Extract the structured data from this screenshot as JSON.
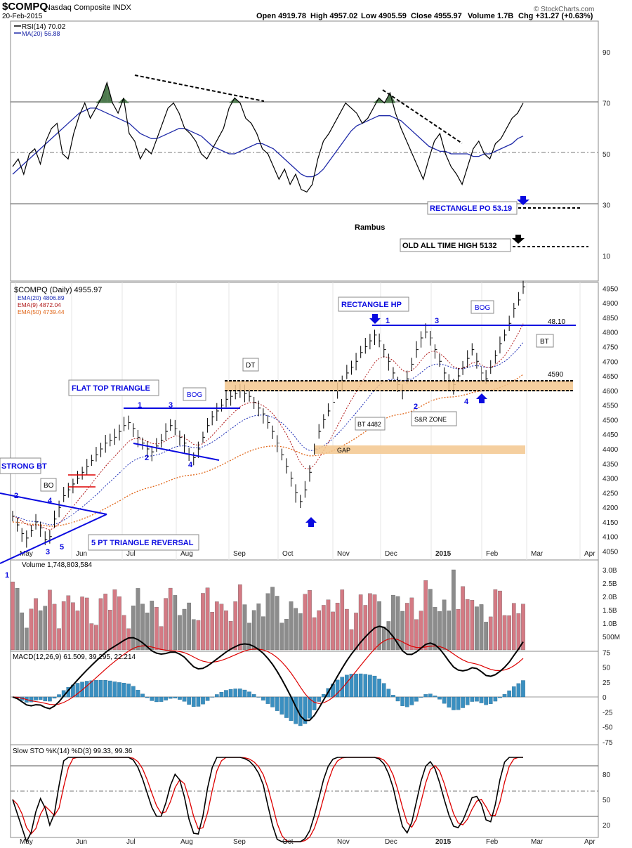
{
  "header": {
    "symbol": "$COMPQ",
    "name": "Nasdaq Composite INDX",
    "date": "20-Feb-2015",
    "open": "Open 4919.78",
    "high": "High 4957.02",
    "low": "Low 4905.59",
    "close": "Close 4955.97",
    "volume": "Volume 1.7B",
    "change": "Chg +31.27 (+0.63%)",
    "watermark": "© StockCharts.com"
  },
  "colors": {
    "rsi": "#000000",
    "rsi_ma": "#1f2aa8",
    "ema20": "#1b2bb5",
    "ema9": "#b01818",
    "ema50": "#e0671a",
    "vol_up": "#d47a84",
    "vol_dn": "#8c8c8c",
    "macd_hist": "#3a8fc0",
    "annot_blue": "#0a0ae0",
    "zone": "#f3c78e",
    "overbought_fill": "#4e7a4e"
  },
  "chart_data": [
    {
      "type": "line",
      "title": "RSI(14) 70.02",
      "series": [
        {
          "name": "RSI(14) 70.02",
          "values": [
            45,
            48,
            42,
            50,
            52,
            46,
            55,
            60,
            62,
            50,
            48,
            58,
            65,
            70,
            64,
            68,
            72,
            78,
            70,
            66,
            72,
            58,
            55,
            48,
            52,
            50,
            56,
            62,
            68,
            70,
            66,
            60,
            58,
            55,
            50,
            48,
            52,
            56,
            60,
            68,
            72,
            70,
            64,
            62,
            58,
            52,
            50,
            45,
            40,
            44,
            38,
            42,
            36,
            35,
            38,
            48,
            55,
            58,
            62,
            66,
            70,
            68,
            66,
            62,
            64,
            68,
            72,
            70,
            74,
            66,
            60,
            55,
            50,
            45,
            40,
            48,
            55,
            58,
            50,
            45,
            42,
            38,
            45,
            52,
            55,
            50,
            48,
            54,
            56,
            60,
            64,
            66,
            70
          ]
        },
        {
          "name": "MA(20) 56.88",
          "values": [
            42,
            44,
            46,
            48,
            50,
            52,
            54,
            56,
            58,
            60,
            62,
            64,
            66,
            67,
            68,
            68,
            67,
            66,
            65,
            64,
            63,
            62,
            60,
            58,
            57,
            56,
            56,
            57,
            58,
            59,
            60,
            60,
            59,
            58,
            57,
            55,
            53,
            52,
            51,
            50,
            50,
            51,
            52,
            53,
            54,
            54,
            53,
            52,
            50,
            48,
            46,
            44,
            42,
            41,
            41,
            42,
            44,
            47,
            50,
            53,
            56,
            59,
            61,
            62,
            63,
            64,
            65,
            65,
            65,
            64,
            63,
            61,
            59,
            57,
            55,
            53,
            52,
            51,
            51,
            50,
            50,
            50,
            50,
            49,
            49,
            50,
            50,
            51,
            52,
            53,
            54,
            56,
            57
          ]
        }
      ],
      "ylim": [
        0,
        100
      ],
      "yticks": [
        "90",
        "70",
        "50",
        "30",
        "10"
      ]
    },
    {
      "type": "line",
      "title": "$COMPQ (Daily) 4955.97",
      "series": [
        {
          "name": "EMA(20) 4806.89"
        },
        {
          "name": "EMA(9) 4872.04"
        },
        {
          "name": "EMA(50) 4739.44"
        }
      ],
      "ylim": [
        4020,
        4970
      ],
      "yticks": [
        "4950",
        "4900",
        "4850",
        "4800",
        "4750",
        "4700",
        "4650",
        "4600",
        "4550",
        "4500",
        "4450",
        "4400",
        "4350",
        "4300",
        "4250",
        "4200",
        "4150",
        "4100",
        "4050"
      ],
      "xticks": [
        "May",
        "Jun",
        "Jul",
        "Aug",
        "Sep",
        "Oct",
        "Nov",
        "Dec",
        "2015",
        "Feb",
        "Mar",
        "Apr"
      ]
    },
    {
      "type": "bar",
      "title": "Volume 1,748,803,584",
      "yticks": [
        "3.0B",
        "2.5B",
        "2.0B",
        "1.5B",
        "1.0B",
        "500M"
      ]
    },
    {
      "type": "line",
      "title": "MACD(12,26,9) 61.509, 39.295, 22.214",
      "yticks": [
        "75",
        "50",
        "25",
        "0",
        "-25",
        "-50",
        "-75"
      ]
    },
    {
      "type": "line",
      "title": "Slow STO %K(14) %D(3) 99.33, 99.36",
      "yticks": [
        "80",
        "50",
        "20"
      ]
    }
  ],
  "annotations": {
    "rambus": "Rambus",
    "rectangle_po": "RECTANGLE PO 53.19",
    "old_ath": "OLD ALL TIME HIGH 5132",
    "rectangle_hp": "RECTANGLE HP",
    "bog1": "BOG",
    "bog2": "BOG",
    "dt": "DT",
    "bo": "BO",
    "flat_top": "FLAT TOP TRIANGLE",
    "strong_bt": "STRONG BT",
    "five_pt": "5 PT TRIANGLE REVERSAL",
    "bt4482": "BT 4482",
    "sr_zone": "S&R ZONE",
    "bt": "BT",
    "gap": "GAP",
    "lvl_4810": "48.10",
    "lvl_4590": "4590",
    "n1a": "1",
    "n2a": "2",
    "n3a": "3",
    "n4a": "4",
    "n5a": "5",
    "n1b": "1",
    "n1c": "1",
    "n2c": "2",
    "n3c": "3",
    "n4c": "4",
    "n1d": "1",
    "n2d": "2",
    "n3d": "3",
    "n4d": "4"
  }
}
